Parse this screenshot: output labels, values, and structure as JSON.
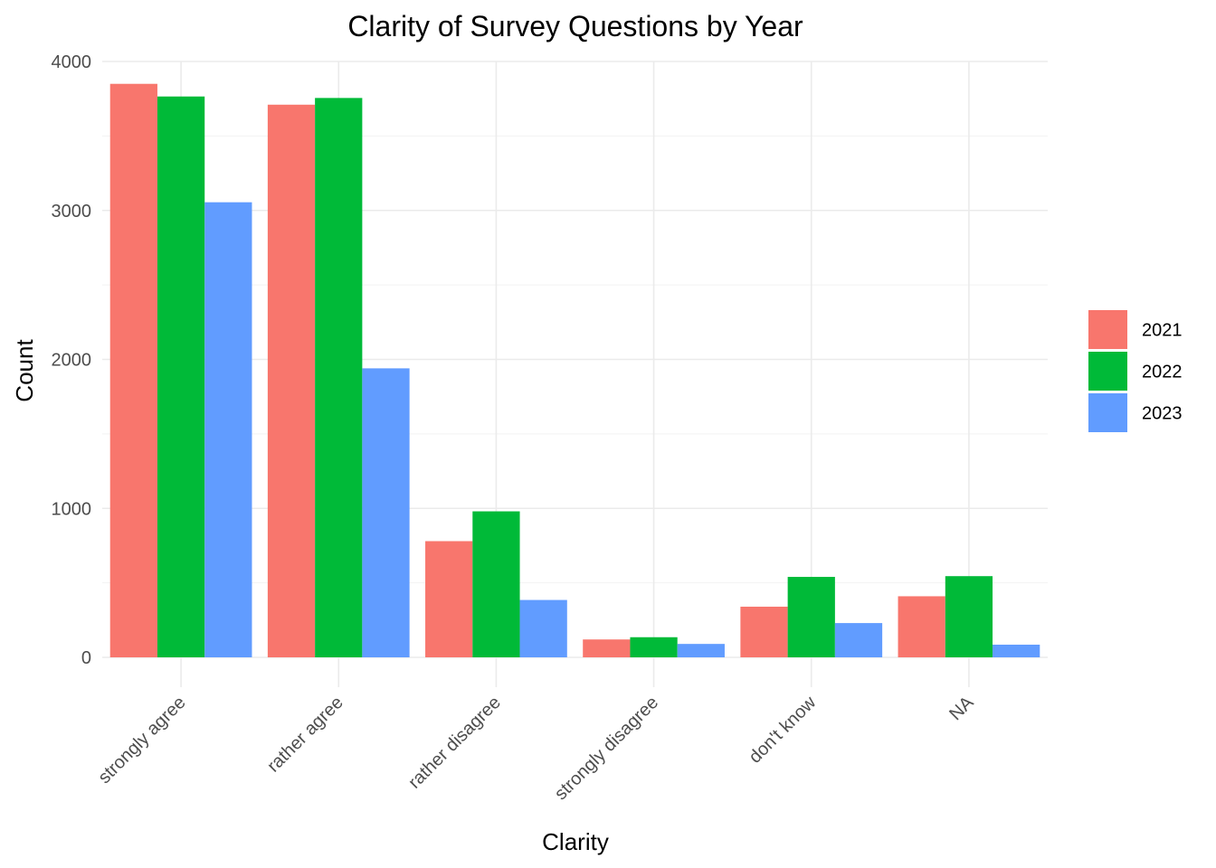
{
  "chart_data": {
    "type": "bar",
    "title": "Clarity of Survey Questions by Year",
    "xlabel": "Clarity",
    "ylabel": "Count",
    "categories": [
      "strongly agree",
      "rather agree",
      "rather disagree",
      "strongly disagree",
      "don't know",
      "NA"
    ],
    "series": [
      {
        "name": "2021",
        "color": "#F8766D",
        "values": [
          3850,
          3710,
          780,
          120,
          340,
          410
        ]
      },
      {
        "name": "2022",
        "color": "#00BA38",
        "values": [
          3765,
          3755,
          980,
          135,
          540,
          545
        ]
      },
      {
        "name": "2023",
        "color": "#619CFF",
        "values": [
          3055,
          1940,
          385,
          90,
          230,
          85
        ]
      }
    ],
    "ylim": [
      0,
      4000
    ],
    "yticks": [
      0,
      1000,
      2000,
      3000,
      4000
    ],
    "grid": true,
    "legend": "right"
  }
}
